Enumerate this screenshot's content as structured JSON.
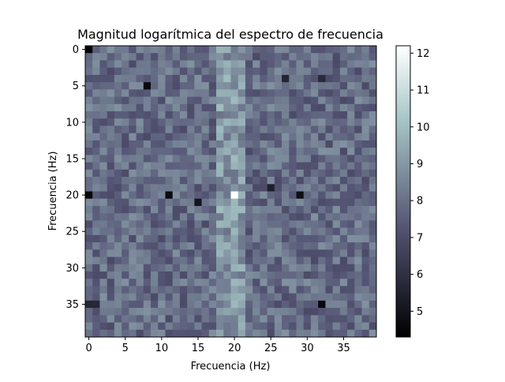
{
  "chart_data": {
    "type": "heatmap",
    "title": "Magnitud logarítmica del espectro de frecuencia",
    "xlabel": "Frecuencia (Hz)",
    "ylabel": "Frecuencia (Hz)",
    "grid": false,
    "colormap": "bone",
    "rows": 40,
    "cols": 40,
    "x_ticks": [
      0,
      5,
      10,
      15,
      20,
      25,
      30,
      35
    ],
    "y_ticks": [
      0,
      5,
      10,
      15,
      20,
      25,
      30,
      35
    ],
    "colorbar": {
      "range": [
        4.3,
        12.2
      ],
      "ticks": [
        5,
        6,
        7,
        8,
        9,
        10,
        11,
        12
      ]
    },
    "notable_cells": [
      {
        "row": 0,
        "col": 0,
        "value": 4.5
      },
      {
        "row": 5,
        "col": 8,
        "value": 4.6
      },
      {
        "row": 4,
        "col": 27,
        "value": 5.6
      },
      {
        "row": 4,
        "col": 32,
        "value": 5.8
      },
      {
        "row": 20,
        "col": 0,
        "value": 4.6
      },
      {
        "row": 20,
        "col": 11,
        "value": 4.7
      },
      {
        "row": 20,
        "col": 20,
        "value": 12.2
      },
      {
        "row": 20,
        "col": 29,
        "value": 4.8
      },
      {
        "row": 21,
        "col": 15,
        "value": 5.0
      },
      {
        "row": 19,
        "col": 25,
        "value": 5.4
      },
      {
        "row": 35,
        "col": 32,
        "value": 4.6
      },
      {
        "row": 35,
        "col": 0,
        "value": 5.6
      },
      {
        "row": 35,
        "col": 1,
        "value": 5.7
      }
    ],
    "column_profile": {
      "baseline": 7.9,
      "bright_columns": [
        18,
        19,
        20,
        21
      ],
      "bright_level": 9.0
    }
  }
}
